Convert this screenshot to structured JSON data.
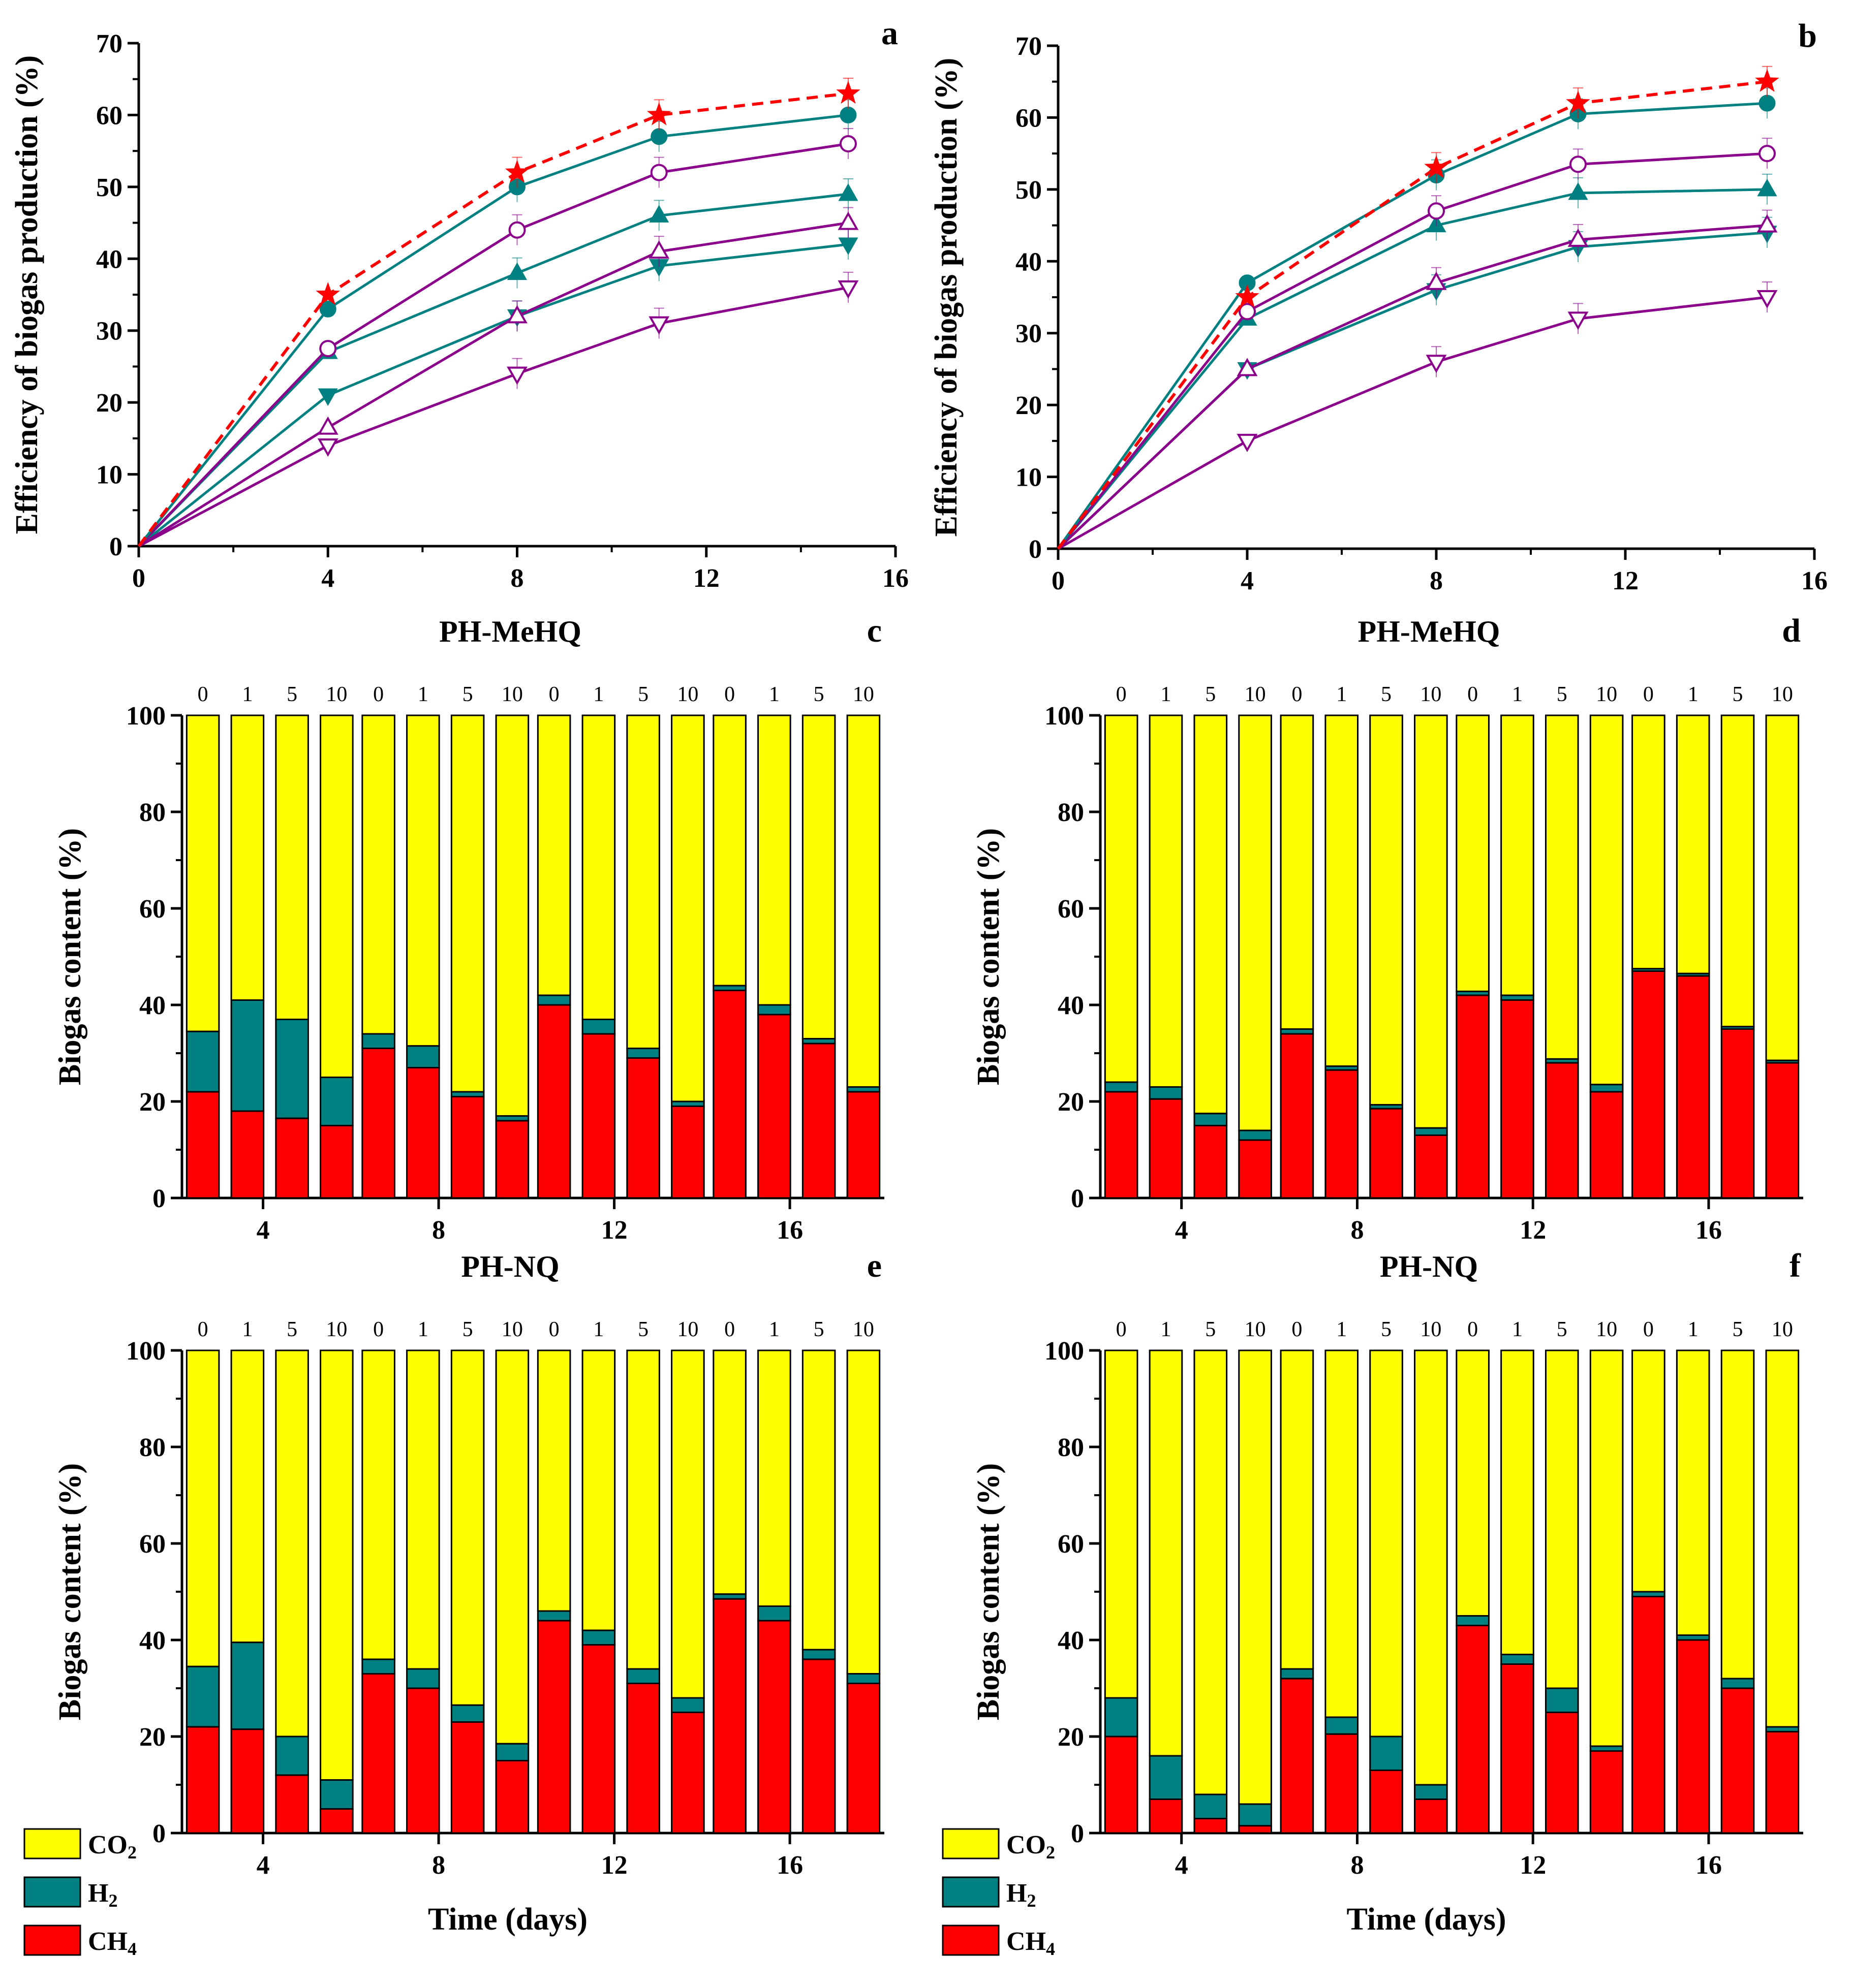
{
  "colors": {
    "control": "#ff0000",
    "teal": "#008080",
    "purple": "#8b008b",
    "co2": "#ffff00",
    "h2": "#008080",
    "ch4": "#ff0000"
  },
  "chart_data": [
    {
      "panel": "a",
      "type": "line",
      "letter": "a",
      "ylabel": "Efficiency of biogas production (%)",
      "xlabel": "",
      "xlim": [
        0,
        16
      ],
      "ylim": [
        0,
        70
      ],
      "xticks": [
        0,
        4,
        8,
        12,
        16
      ],
      "yticks": [
        0,
        10,
        20,
        30,
        40,
        50,
        60,
        70
      ],
      "series": [
        {
          "name": "control",
          "marker": "star",
          "dashed": true,
          "color": "control",
          "x": [
            0,
            4,
            8,
            11,
            15
          ],
          "y": [
            0,
            35,
            52,
            60,
            63
          ]
        },
        {
          "name": "teal-circle",
          "marker": "circle",
          "filled": true,
          "color": "teal",
          "x": [
            0,
            4,
            8,
            11,
            15
          ],
          "y": [
            0,
            33,
            50,
            57,
            60
          ]
        },
        {
          "name": "purple-circle",
          "marker": "circle",
          "filled": false,
          "color": "purple",
          "x": [
            0,
            4,
            8,
            11,
            15
          ],
          "y": [
            0,
            27.5,
            44,
            52,
            56
          ]
        },
        {
          "name": "teal-triangle-up",
          "marker": "triangle-up",
          "filled": true,
          "color": "teal",
          "x": [
            0,
            4,
            8,
            11,
            15
          ],
          "y": [
            0,
            27,
            38,
            46,
            49
          ]
        },
        {
          "name": "purple-triangle-up",
          "marker": "triangle-up",
          "filled": false,
          "color": "purple",
          "x": [
            0,
            4,
            8,
            11,
            15
          ],
          "y": [
            0,
            16.5,
            32,
            41,
            45
          ]
        },
        {
          "name": "teal-triangle-down",
          "marker": "triangle-down",
          "filled": true,
          "color": "teal",
          "x": [
            0,
            4,
            8,
            11,
            15
          ],
          "y": [
            0,
            21,
            32,
            39,
            42
          ]
        },
        {
          "name": "purple-triangle-down",
          "marker": "triangle-down",
          "filled": false,
          "color": "purple",
          "x": [
            0,
            4,
            8,
            11,
            15
          ],
          "y": [
            0,
            14,
            24,
            31,
            36
          ]
        }
      ]
    },
    {
      "panel": "b",
      "type": "line",
      "letter": "b",
      "ylabel": "Efficiency of biogas production (%)",
      "xlabel": "",
      "xlim": [
        0,
        16
      ],
      "ylim": [
        0,
        70
      ],
      "xticks": [
        0,
        4,
        8,
        12,
        16
      ],
      "yticks": [
        0,
        10,
        20,
        30,
        40,
        50,
        60,
        70
      ],
      "series": [
        {
          "name": "control",
          "marker": "star",
          "dashed": true,
          "color": "control",
          "x": [
            0,
            4,
            8,
            11,
            15
          ],
          "y": [
            0,
            35,
            53,
            62,
            65
          ]
        },
        {
          "name": "teal-circle",
          "marker": "circle",
          "filled": true,
          "color": "teal",
          "x": [
            0,
            4,
            8,
            11,
            15
          ],
          "y": [
            0,
            37,
            52,
            60.5,
            62
          ]
        },
        {
          "name": "purple-circle",
          "marker": "circle",
          "filled": false,
          "color": "purple",
          "x": [
            0,
            4,
            8,
            11,
            15
          ],
          "y": [
            0,
            33,
            47,
            53.5,
            55
          ]
        },
        {
          "name": "teal-triangle-up",
          "marker": "triangle-up",
          "filled": true,
          "color": "teal",
          "x": [
            0,
            4,
            8,
            11,
            15
          ],
          "y": [
            0,
            32,
            45,
            49.5,
            50
          ]
        },
        {
          "name": "purple-triangle-up",
          "marker": "triangle-up",
          "filled": false,
          "color": "purple",
          "x": [
            0,
            4,
            8,
            11,
            15
          ],
          "y": [
            0,
            25,
            37,
            43,
            45
          ]
        },
        {
          "name": "teal-triangle-down",
          "marker": "triangle-down",
          "filled": true,
          "color": "teal",
          "x": [
            0,
            4,
            8,
            11,
            15
          ],
          "y": [
            0,
            25,
            36,
            42,
            44
          ]
        },
        {
          "name": "purple-triangle-down",
          "marker": "triangle-down",
          "filled": false,
          "color": "purple",
          "x": [
            0,
            4,
            8,
            11,
            15
          ],
          "y": [
            0,
            15,
            26,
            32,
            35
          ]
        }
      ]
    },
    {
      "panel": "c",
      "type": "bar",
      "stacked": true,
      "title": "PH-MeHQ",
      "letter": "c",
      "ylabel": "Biogas content (%)",
      "xlabel": "",
      "ylim": [
        0,
        100
      ],
      "yticks": [
        0,
        20,
        40,
        60,
        80,
        100
      ],
      "categories": [
        "4",
        "8",
        "12",
        "16"
      ],
      "concentrations": [
        "0",
        "1",
        "5",
        "10"
      ],
      "ch4": [
        [
          22,
          18,
          16.5,
          15
        ],
        [
          31,
          27,
          21,
          16
        ],
        [
          40,
          34,
          29,
          19
        ],
        [
          43,
          38,
          32,
          22
        ]
      ],
      "h2": [
        [
          12.5,
          23,
          20.5,
          10
        ],
        [
          3,
          4.5,
          1,
          1
        ],
        [
          2,
          3,
          2,
          1
        ],
        [
          1,
          2,
          1,
          1
        ]
      ]
    },
    {
      "panel": "d",
      "type": "bar",
      "stacked": true,
      "title": "PH-MeHQ",
      "letter": "d",
      "ylabel": "Biogas content (%)",
      "xlabel": "",
      "ylim": [
        0,
        100
      ],
      "yticks": [
        0,
        20,
        40,
        60,
        80,
        100
      ],
      "categories": [
        "4",
        "8",
        "12",
        "16"
      ],
      "concentrations": [
        "0",
        "1",
        "5",
        "10"
      ],
      "ch4": [
        [
          22,
          20.5,
          15,
          12
        ],
        [
          34,
          26.5,
          18.5,
          13
        ],
        [
          42,
          41,
          28,
          22
        ],
        [
          47,
          46,
          35,
          28
        ]
      ],
      "h2": [
        [
          2,
          2.5,
          2.5,
          2
        ],
        [
          1,
          0.8,
          0.8,
          1.5
        ],
        [
          0.8,
          1,
          0.8,
          1.5
        ],
        [
          0.5,
          0.5,
          0.5,
          0.5
        ]
      ]
    },
    {
      "panel": "e",
      "type": "bar",
      "stacked": true,
      "title": "PH-NQ",
      "letter": "e",
      "ylabel": "Biogas content (%)",
      "xlabel": "Time (days)",
      "ylim": [
        0,
        100
      ],
      "yticks": [
        0,
        20,
        40,
        60,
        80,
        100
      ],
      "categories": [
        "4",
        "8",
        "12",
        "16"
      ],
      "concentrations": [
        "0",
        "1",
        "5",
        "10"
      ],
      "ch4": [
        [
          22,
          21.5,
          12,
          5
        ],
        [
          33,
          30,
          23,
          15
        ],
        [
          44,
          39,
          31,
          25
        ],
        [
          48.5,
          44,
          36,
          31
        ]
      ],
      "h2": [
        [
          12.5,
          18,
          8,
          6
        ],
        [
          3,
          4,
          3.5,
          3.5
        ],
        [
          2,
          3,
          3,
          3
        ],
        [
          1,
          3,
          2,
          2
        ]
      ],
      "legend": {
        "position": "bottom-left",
        "entries": [
          {
            "label": "CO",
            "sub": "2",
            "color": "co2"
          },
          {
            "label": "H",
            "sub": "2",
            "color": "h2"
          },
          {
            "label": "CH",
            "sub": "4",
            "color": "ch4"
          }
        ]
      }
    },
    {
      "panel": "f",
      "type": "bar",
      "stacked": true,
      "title": "PH-NQ",
      "letter": "f",
      "ylabel": "Biogas content (%)",
      "xlabel": "Time (days)",
      "ylim": [
        0,
        100
      ],
      "yticks": [
        0,
        20,
        40,
        60,
        80,
        100
      ],
      "categories": [
        "4",
        "8",
        "12",
        "16"
      ],
      "concentrations": [
        "0",
        "1",
        "5",
        "10"
      ],
      "ch4": [
        [
          20,
          7,
          3,
          1.5
        ],
        [
          32,
          20.5,
          13,
          7
        ],
        [
          43,
          35,
          25,
          17
        ],
        [
          49,
          40,
          30,
          21
        ]
      ],
      "h2": [
        [
          8,
          9,
          5,
          4.5
        ],
        [
          2,
          3.5,
          7,
          3
        ],
        [
          2,
          2,
          5,
          1
        ],
        [
          1,
          1,
          2,
          1
        ]
      ],
      "legend": {
        "position": "bottom-left",
        "entries": [
          {
            "label": "CO",
            "sub": "2",
            "color": "co2"
          },
          {
            "label": "H",
            "sub": "2",
            "color": "h2"
          },
          {
            "label": "CH",
            "sub": "4",
            "color": "ch4"
          }
        ]
      }
    }
  ]
}
